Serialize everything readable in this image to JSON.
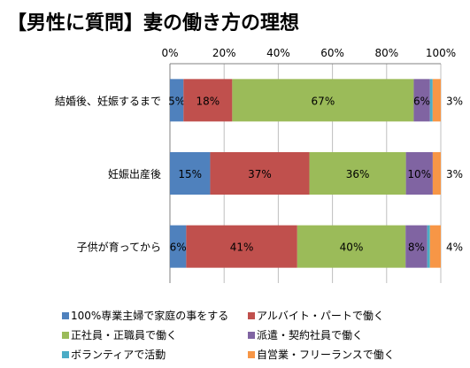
{
  "title": "【男性に質問】妻の働き方の理想",
  "chart_data": {
    "type": "bar",
    "orientation": "horizontal",
    "stacked": "percent",
    "categories": [
      "結婚後、妊娠するまで",
      "妊娠出産後",
      "子供が育ってから"
    ],
    "x_ticks": [
      "0%",
      "20%",
      "40%",
      "60%",
      "80%",
      "100%"
    ],
    "xlim": [
      0,
      100
    ],
    "grid": true,
    "legend_position": "bottom",
    "series": [
      {
        "name": "100%専業主婦で家庭の事をする",
        "color": "#4f81bd",
        "values": [
          5,
          15,
          6
        ],
        "labels": [
          "5%",
          "15%",
          "6%"
        ]
      },
      {
        "name": "アルバイト・パートで働く",
        "color": "#c0504d",
        "values": [
          18,
          37,
          41
        ],
        "labels": [
          "18%",
          "37%",
          "41%"
        ]
      },
      {
        "name": "正社員・正職員で働く",
        "color": "#9bbb59",
        "values": [
          67,
          36,
          40
        ],
        "labels": [
          "67%",
          "36%",
          "40%"
        ]
      },
      {
        "name": "派遣・契約社員で働く",
        "color": "#8064a2",
        "values": [
          6,
          10,
          8
        ],
        "labels": [
          "6%",
          "10%",
          "8%"
        ]
      },
      {
        "name": "ボランティアで活動",
        "color": "#4bacc6",
        "values": [
          1,
          0,
          1
        ],
        "labels": [
          "",
          "",
          ""
        ]
      },
      {
        "name": "自営業・フリーランスで働く",
        "color": "#f79646",
        "values": [
          3,
          3,
          4
        ],
        "labels": [
          "3%",
          "3%",
          "4%"
        ]
      }
    ]
  }
}
